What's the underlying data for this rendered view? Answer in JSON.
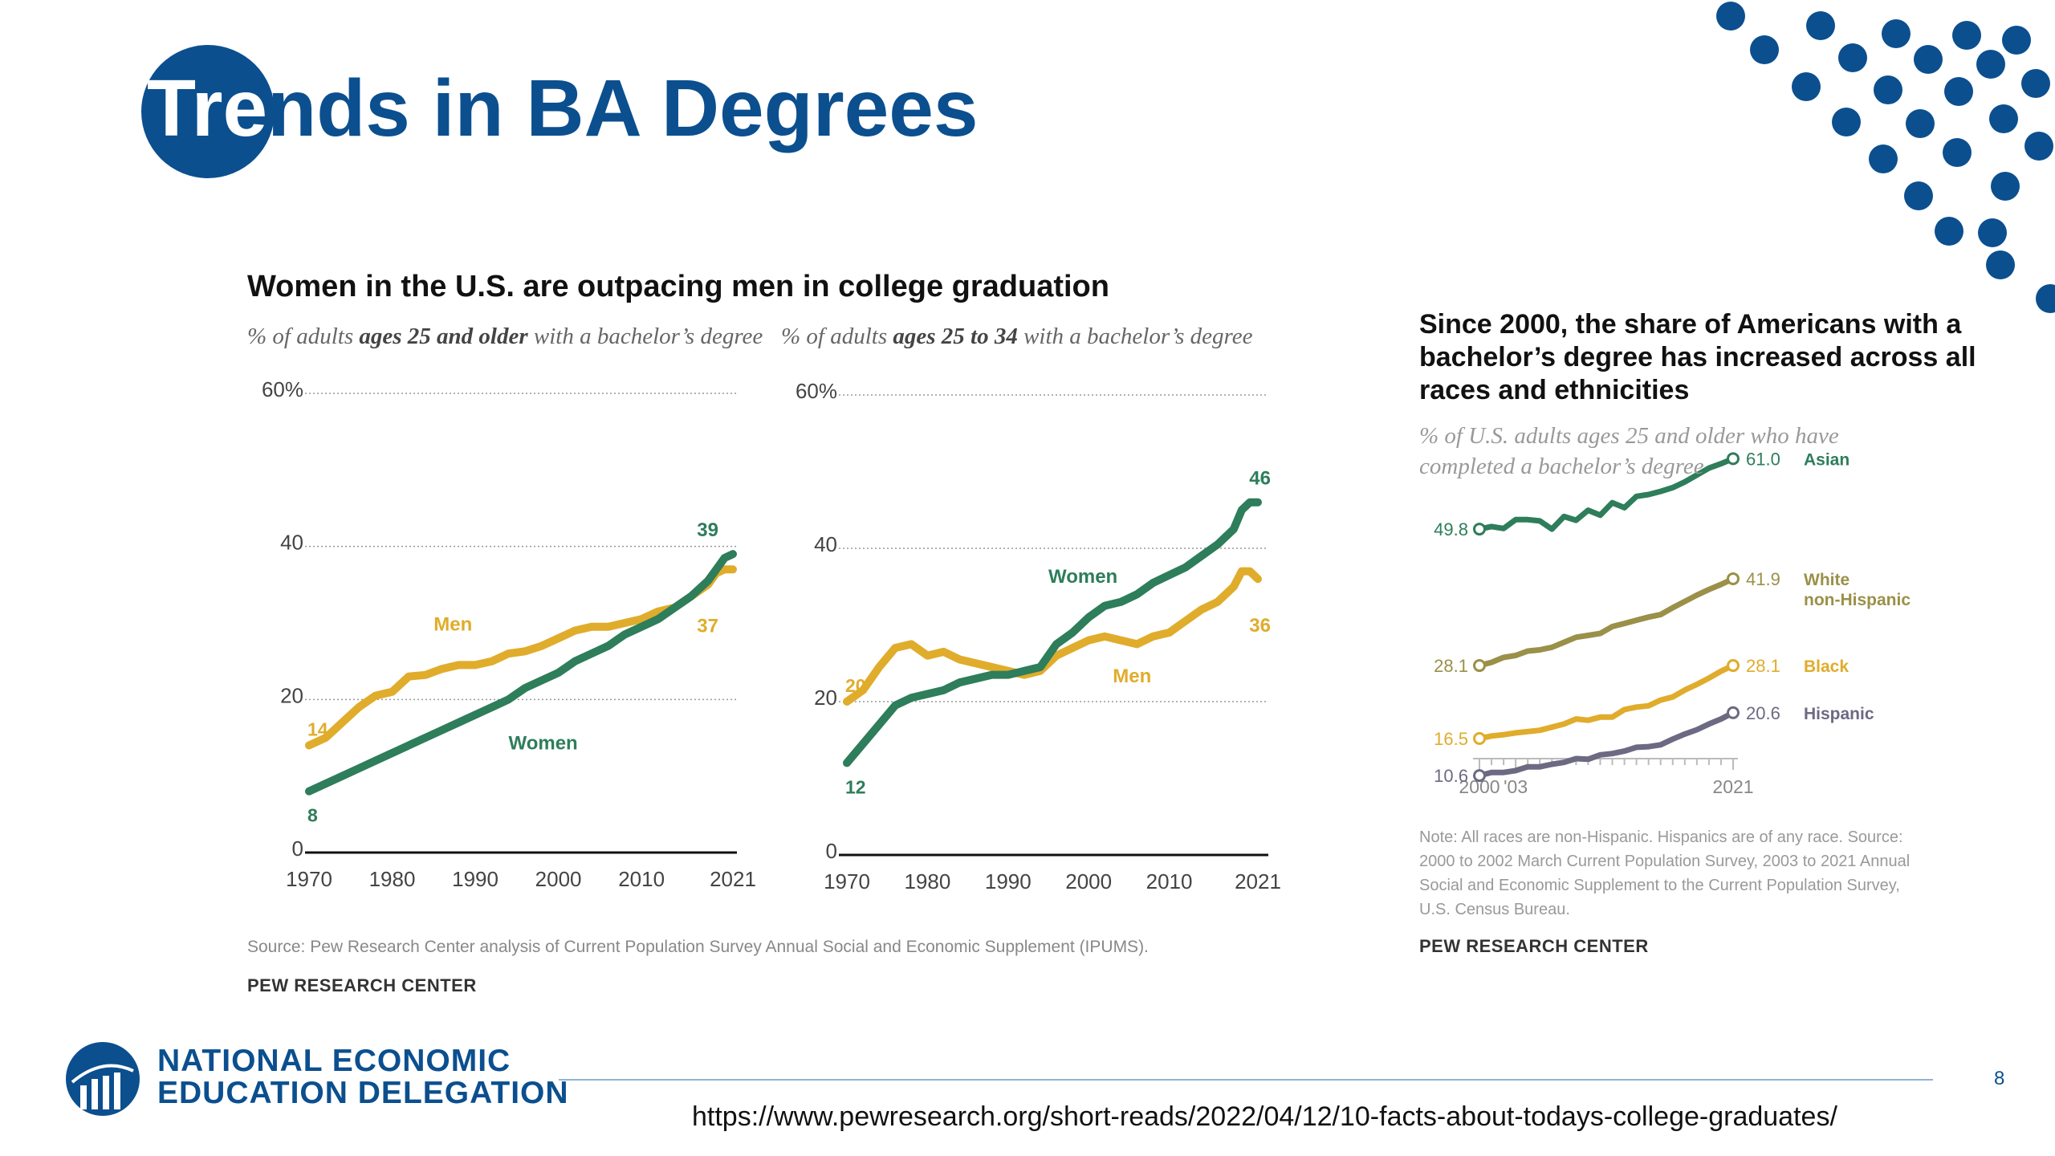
{
  "slide": {
    "title_white": "Tre",
    "title_blue": "nds in BA Degrees",
    "page_number": "8",
    "url": "https://www.pewresearch.org/short-reads/2022/04/12/10-facts-about-todays-college-graduates/",
    "org_line1": "NATIONAL ECONOMIC",
    "org_line2": "EDUCATION DELEGATION",
    "colors": {
      "brand_blue": "#0b4f8f",
      "women_green": "#2e7d5b",
      "men_gold": "#e0ac2b"
    }
  },
  "left_panel": {
    "title": "Women in the U.S. are outpacing men in college graduation",
    "source": "Source: Pew Research Center analysis of Current Population Survey Annual Social and Economic Supplement (IPUMS).",
    "pew": "PEW RESEARCH CENTER"
  },
  "right_panel": {
    "title": "Since 2000, the share of Americans with a bachelor’s degree has increased across all races and ethnicities",
    "subtitle": "% of U.S. adults ages 25 and older who have completed a bachelor’s degree",
    "note": "Note: All races are non-Hispanic. Hispanics are of any race. Source: 2000 to 2002 March Current Population Survey, 2003 to 2021 Annual Social and Economic Supplement to the Current Population Survey, U.S. Census Bureau.",
    "pew": "PEW RESEARCH CENTER"
  },
  "chart_data": [
    {
      "type": "line",
      "subtitle_pre": "% of adults ",
      "subtitle_bold": "ages 25 and older",
      "subtitle_post": " with a bachelor’s degree",
      "x_tick_labels": [
        "1970",
        "1980",
        "1990",
        "2000",
        "2010",
        "2021"
      ],
      "y_tick_labels": [
        "0",
        "20",
        "40",
        "60%"
      ],
      "ylim": [
        0,
        60
      ],
      "xlim": [
        1970,
        2021
      ],
      "grid": true,
      "series": [
        {
          "name": "Men",
          "color": "#e0ac2b",
          "start_label": "14",
          "end_label": "37",
          "x": [
            1970,
            1972,
            1974,
            1976,
            1978,
            1980,
            1982,
            1984,
            1986,
            1988,
            1990,
            1992,
            1994,
            1996,
            1998,
            2000,
            2002,
            2004,
            2006,
            2008,
            2010,
            2012,
            2014,
            2016,
            2018,
            2019,
            2020,
            2021
          ],
          "y": [
            14,
            15,
            17,
            19,
            20.5,
            21,
            23,
            23.2,
            24,
            24.5,
            24.5,
            25,
            26,
            26.3,
            27,
            28,
            29,
            29.5,
            29.5,
            30,
            30.5,
            31.5,
            32,
            33.5,
            35,
            36.5,
            37,
            37
          ]
        },
        {
          "name": "Women",
          "color": "#2e7d5b",
          "start_label": "8",
          "end_label": "39",
          "x": [
            1970,
            1972,
            1974,
            1976,
            1978,
            1980,
            1982,
            1984,
            1986,
            1988,
            1990,
            1992,
            1994,
            1996,
            1998,
            2000,
            2002,
            2004,
            2006,
            2008,
            2010,
            2012,
            2014,
            2016,
            2018,
            2019,
            2020,
            2021
          ],
          "y": [
            8,
            9,
            10,
            11,
            12,
            13,
            14,
            15,
            16,
            17,
            18,
            19,
            20,
            21.5,
            22.5,
            23.5,
            25,
            26,
            27,
            28.5,
            29.5,
            30.5,
            32,
            33.5,
            35.5,
            37,
            38.5,
            39
          ]
        }
      ]
    },
    {
      "type": "line",
      "subtitle_pre": "% of adults ",
      "subtitle_bold": "ages 25 to 34",
      "subtitle_post": " with a bachelor’s degree",
      "x_tick_labels": [
        "1970",
        "1980",
        "1990",
        "2000",
        "2010",
        "2021"
      ],
      "y_tick_labels": [
        "0",
        "20",
        "40",
        "60%"
      ],
      "ylim": [
        0,
        60
      ],
      "xlim": [
        1970,
        2021
      ],
      "grid": true,
      "series": [
        {
          "name": "Men",
          "color": "#e0ac2b",
          "start_label": "20",
          "end_label": "36",
          "x": [
            1970,
            1972,
            1974,
            1976,
            1978,
            1980,
            1982,
            1984,
            1986,
            1988,
            1990,
            1992,
            1994,
            1996,
            1998,
            2000,
            2002,
            2004,
            2006,
            2008,
            2010,
            2012,
            2014,
            2016,
            2018,
            2019,
            2020,
            2021
          ],
          "y": [
            20,
            21.5,
            24.5,
            27,
            27.5,
            26,
            26.5,
            25.5,
            25,
            24.5,
            24,
            23.5,
            24,
            26,
            27,
            28,
            28.5,
            28,
            27.5,
            28.5,
            29,
            30.5,
            32,
            33,
            35,
            37,
            37,
            36
          ]
        },
        {
          "name": "Women",
          "color": "#2e7d5b",
          "start_label": "12",
          "end_label": "46",
          "x": [
            1970,
            1972,
            1974,
            1976,
            1978,
            1980,
            1982,
            1984,
            1986,
            1988,
            1990,
            1992,
            1994,
            1996,
            1998,
            2000,
            2002,
            2004,
            2006,
            2008,
            2010,
            2012,
            2014,
            2016,
            2018,
            2019,
            2020,
            2021
          ],
          "y": [
            12,
            14.5,
            17,
            19.5,
            20.5,
            21,
            21.5,
            22.5,
            23,
            23.5,
            23.5,
            24,
            24.5,
            27.5,
            29,
            31,
            32.5,
            33,
            34,
            35.5,
            36.5,
            37.5,
            39,
            40.5,
            42.5,
            45,
            46,
            46
          ]
        }
      ]
    },
    {
      "type": "line",
      "x_tick_labels": [
        "2000",
        "'03",
        "2021"
      ],
      "xlim": [
        2000,
        2021
      ],
      "ylim": [
        5,
        65
      ],
      "grid": false,
      "series": [
        {
          "name": "Asian",
          "color": "#2e7d5b",
          "start_label": "49.8",
          "end_label": "61.0",
          "x": [
            2000,
            2001,
            2002,
            2003,
            2004,
            2005,
            2006,
            2007,
            2008,
            2009,
            2010,
            2011,
            2012,
            2013,
            2014,
            2015,
            2016,
            2017,
            2018,
            2019,
            2020,
            2021
          ],
          "y": [
            49.8,
            50.2,
            49.9,
            51.3,
            51.3,
            51.1,
            49.8,
            51.8,
            51.2,
            52.8,
            52,
            54,
            53.2,
            55,
            55.3,
            55.8,
            56.4,
            57.3,
            58.4,
            59.5,
            60.2,
            61.0
          ]
        },
        {
          "name": "White non-Hispanic",
          "color": "#9a9048",
          "start_label": "28.1",
          "end_label": "41.9",
          "x": [
            2000,
            2001,
            2002,
            2003,
            2004,
            2005,
            2006,
            2007,
            2008,
            2009,
            2010,
            2011,
            2012,
            2013,
            2014,
            2015,
            2016,
            2017,
            2018,
            2019,
            2020,
            2021
          ],
          "y": [
            28.1,
            28.6,
            29.4,
            29.7,
            30.4,
            30.6,
            31,
            31.8,
            32.6,
            32.9,
            33.2,
            34.3,
            34.8,
            35.3,
            35.8,
            36.2,
            37.3,
            38.3,
            39.3,
            40.2,
            41,
            41.9
          ]
        },
        {
          "name": "Black",
          "color": "#e0ac2b",
          "start_label": "16.5",
          "end_label": "28.1",
          "x": [
            2000,
            2001,
            2002,
            2003,
            2004,
            2005,
            2006,
            2007,
            2008,
            2009,
            2010,
            2011,
            2012,
            2013,
            2014,
            2015,
            2016,
            2017,
            2018,
            2019,
            2020,
            2021
          ],
          "y": [
            16.5,
            16.9,
            17.1,
            17.4,
            17.6,
            17.8,
            18.3,
            18.8,
            19.6,
            19.4,
            19.9,
            19.9,
            21.1,
            21.5,
            21.7,
            22.6,
            23.1,
            24.2,
            25.1,
            26.1,
            27.2,
            28.1
          ]
        },
        {
          "name": "Hispanic",
          "color": "#6c6a82",
          "start_label": "10.6",
          "end_label": "20.6",
          "x": [
            2000,
            2001,
            2002,
            2003,
            2004,
            2005,
            2006,
            2007,
            2008,
            2009,
            2010,
            2011,
            2012,
            2013,
            2014,
            2015,
            2016,
            2017,
            2018,
            2019,
            2020,
            2021
          ],
          "y": [
            10.6,
            11.1,
            11.1,
            11.4,
            12,
            12,
            12.4,
            12.7,
            13.3,
            13.2,
            13.9,
            14.1,
            14.5,
            15.1,
            15.2,
            15.5,
            16.4,
            17.2,
            17.9,
            18.8,
            19.6,
            20.6
          ]
        }
      ]
    }
  ]
}
